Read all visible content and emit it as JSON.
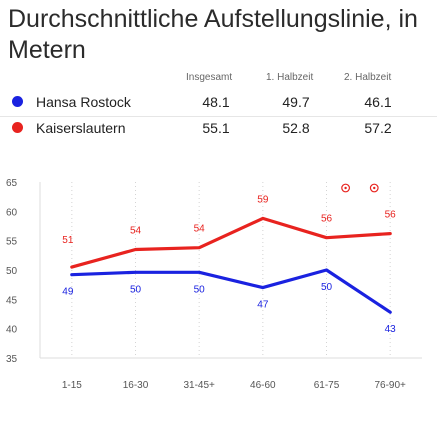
{
  "title": "Durchschnittliche Aufstellungslinie, in Metern",
  "columns": [
    "Insgesamt",
    "1. Halbzeit",
    "2. Halbzeit"
  ],
  "teams": [
    {
      "name": "Hansa Rostock",
      "color": "#1a22e0",
      "insgesamt": "48.1",
      "halbzeit1": "49.7",
      "halbzeit2": "46.1"
    },
    {
      "name": "Kaiserslautern",
      "color": "#e8231f",
      "insgesamt": "55.1",
      "halbzeit1": "52.8",
      "halbzeit2": "57.2"
    }
  ],
  "chart_data": {
    "type": "line",
    "categories": [
      "1-15",
      "16-30",
      "31-45+",
      "46-60",
      "61-75",
      "76-90+"
    ],
    "yticks": [
      35,
      40,
      45,
      50,
      55,
      60,
      65
    ],
    "ylim": [
      35,
      65
    ],
    "grid": "vertical-dotted",
    "goal_markers": [
      {
        "between": [
          "61-75",
          "76-90+"
        ],
        "position": 0.3,
        "icon": "football-icon"
      },
      {
        "between": [
          "61-75",
          "76-90+"
        ],
        "position": 0.75,
        "icon": "football-icon"
      }
    ],
    "series": [
      {
        "name": "Kaiserslautern",
        "color": "#e8231f",
        "values": [
          50.5,
          53.5,
          53.8,
          58.8,
          55.5,
          56.2
        ],
        "labels": [
          "51",
          "54",
          "54",
          "59",
          "56",
          "56"
        ]
      },
      {
        "name": "Hansa Rostock",
        "color": "#1a22e0",
        "values": [
          49.2,
          49.6,
          49.6,
          47.0,
          50.0,
          42.8
        ],
        "labels": [
          "49",
          "50",
          "50",
          "47",
          "50",
          "43"
        ]
      }
    ]
  }
}
